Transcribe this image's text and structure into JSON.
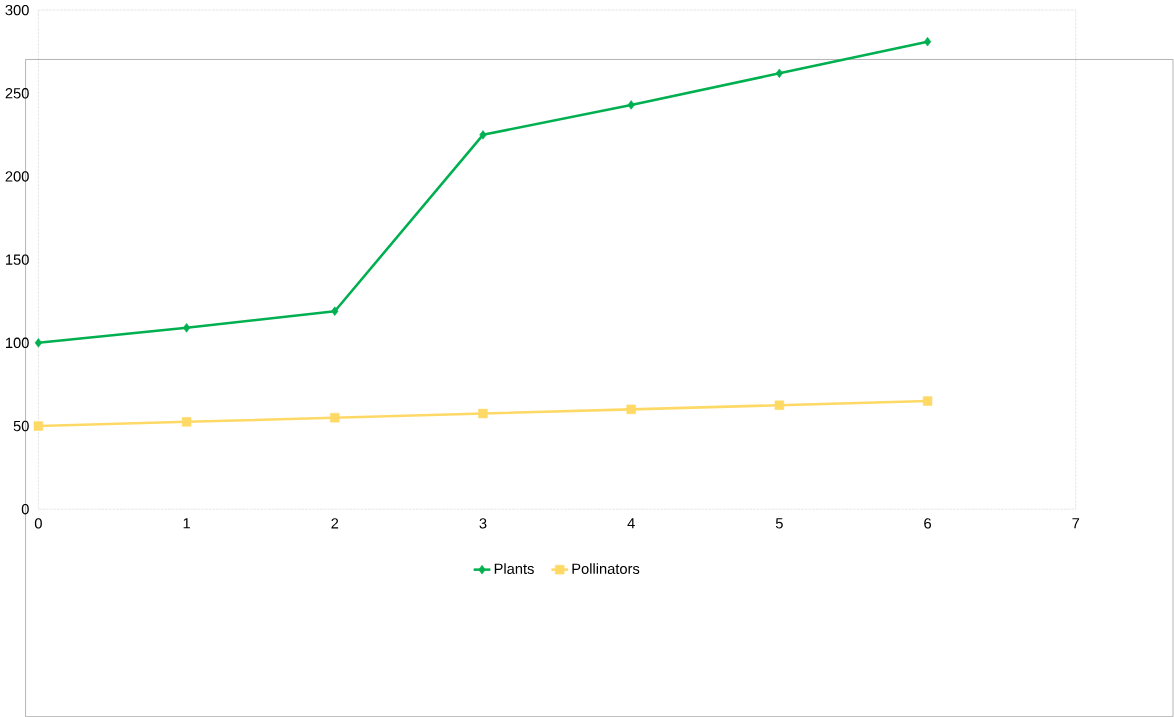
{
  "chart_data": {
    "type": "line",
    "x": [
      0,
      1,
      2,
      3,
      4,
      5,
      6
    ],
    "series": [
      {
        "name": "Plants",
        "color": "#00b050",
        "marker": "diamond",
        "values": [
          100,
          109,
          119,
          225,
          243,
          262,
          281
        ]
      },
      {
        "name": "Pollinators",
        "color": "#ffd966",
        "marker": "square",
        "values": [
          50,
          52.5,
          55,
          57.5,
          60,
          62.5,
          65
        ]
      }
    ],
    "xlim": [
      0,
      7
    ],
    "xticks": [
      0,
      1,
      2,
      3,
      4,
      5,
      6,
      7
    ],
    "ylim": [
      0,
      300
    ],
    "yticks": [
      0,
      50,
      100,
      150,
      200,
      250,
      300
    ],
    "grid": false,
    "legend": "bottom",
    "line_style": "solid"
  }
}
